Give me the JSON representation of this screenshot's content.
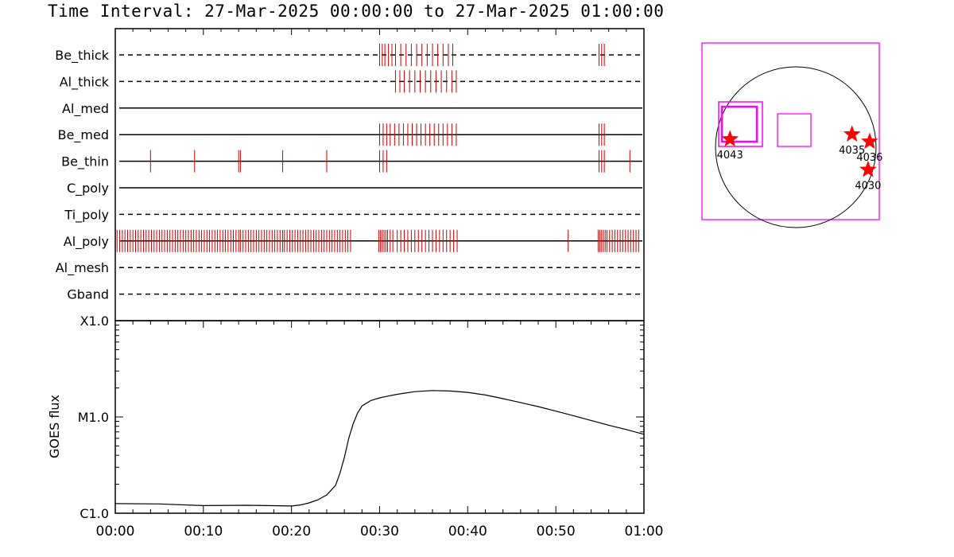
{
  "title": "Time Interval: 27-Mar-2025 00:00:00 to 27-Mar-2025 01:00:00",
  "colors": {
    "marks": "#cc0000",
    "fov": "#ff00ff",
    "star": "#ff0000",
    "line": "#000000"
  },
  "chart_data": [
    {
      "type": "timeline",
      "xlim": [
        "00:00",
        "01:00"
      ],
      "rows": [
        {
          "label": "Be_thick",
          "style": "dashed",
          "exposures": [
            30.0,
            30.3,
            30.6,
            31.0,
            31.4,
            31.8,
            32.4,
            33.0,
            33.6,
            34.2,
            34.8,
            35.4,
            36.0,
            36.6,
            37.2,
            37.8,
            38.3,
            54.9,
            55.2,
            55.5
          ]
        },
        {
          "label": "Al_thick",
          "style": "dashed",
          "exposures": [
            31.8,
            32.3,
            32.8,
            33.4,
            34.0,
            34.6,
            35.2,
            35.8,
            36.4,
            37.0,
            37.6,
            38.2,
            38.7
          ]
        },
        {
          "label": "Al_med",
          "style": "solid",
          "exposures": []
        },
        {
          "label": "Be_med",
          "style": "solid",
          "exposures": [
            30.0,
            30.4,
            30.8,
            31.2,
            31.7,
            32.2,
            32.7,
            33.2,
            33.7,
            34.2,
            34.7,
            35.2,
            35.7,
            36.2,
            36.7,
            37.2,
            37.7,
            38.2,
            38.7,
            54.9,
            55.2,
            55.5
          ]
        },
        {
          "label": "Be_thin",
          "style": "solid",
          "exposures": [
            4.0,
            9.0,
            14.0,
            14.2,
            19.0,
            24.0,
            30.0,
            30.4,
            30.8,
            54.9,
            55.2,
            55.5,
            58.4
          ]
        },
        {
          "label": "C_poly",
          "style": "solid",
          "exposures": []
        },
        {
          "label": "Ti_poly",
          "style": "dashed",
          "exposures": []
        },
        {
          "label": "Al_poly",
          "style": "solid",
          "exposures": [
            0.2,
            0.5,
            0.8,
            1.1,
            1.4,
            1.7,
            2.0,
            2.3,
            2.6,
            2.9,
            3.2,
            3.5,
            3.8,
            4.1,
            4.4,
            4.7,
            5.0,
            5.3,
            5.6,
            5.9,
            6.2,
            6.5,
            6.8,
            7.1,
            7.4,
            7.7,
            8.0,
            8.3,
            8.6,
            8.9,
            9.2,
            9.5,
            9.8,
            10.1,
            10.4,
            10.7,
            11.0,
            11.3,
            11.6,
            11.9,
            12.2,
            12.5,
            12.8,
            13.1,
            13.4,
            13.7,
            14.0,
            14.2,
            14.5,
            14.8,
            15.1,
            15.4,
            15.7,
            16.0,
            16.3,
            16.6,
            16.9,
            17.2,
            17.5,
            17.8,
            18.1,
            18.4,
            18.7,
            19.0,
            19.2,
            19.5,
            19.8,
            20.1,
            20.4,
            20.7,
            21.0,
            21.3,
            21.6,
            21.9,
            22.2,
            22.5,
            22.8,
            23.1,
            23.4,
            23.7,
            24.0,
            24.3,
            24.6,
            24.9,
            25.2,
            25.5,
            25.8,
            26.1,
            26.4,
            26.7,
            29.9,
            30.1,
            30.3,
            30.5,
            30.7,
            30.9,
            31.2,
            31.5,
            32.0,
            32.4,
            32.8,
            33.2,
            33.6,
            34.0,
            34.4,
            34.8,
            35.2,
            35.6,
            36.0,
            36.4,
            36.8,
            37.2,
            37.6,
            38.0,
            38.4,
            38.8,
            51.4,
            54.8,
            55.0,
            55.2,
            55.4,
            55.6,
            55.8,
            56.1,
            56.4,
            56.7,
            57.0,
            57.3,
            57.6,
            57.9,
            58.2,
            58.5,
            58.8,
            59.1,
            59.4
          ]
        },
        {
          "label": "Al_mesh",
          "style": "dashed",
          "exposures": []
        },
        {
          "label": "Gband",
          "style": "dashed",
          "exposures": []
        }
      ]
    },
    {
      "type": "line",
      "ylabel": "GOES flux",
      "yscale": "log",
      "ylim": [
        1e-06,
        0.0001
      ],
      "ytick_values": [
        1e-06,
        1e-05,
        0.0001
      ],
      "ytick_labels": [
        "C1.0",
        "M1.0",
        "X1.0"
      ],
      "xlim": [
        0,
        60
      ],
      "xtick_values": [
        0,
        10,
        20,
        30,
        40,
        50,
        60
      ],
      "xtick_labels": [
        "00:00",
        "00:10",
        "00:20",
        "00:30",
        "00:40",
        "00:50",
        "01:00"
      ],
      "series": [
        {
          "x": [
            0,
            5,
            10,
            15,
            20,
            21,
            22,
            23,
            24,
            25,
            25.5,
            26,
            26.5,
            27,
            27.5,
            28,
            29,
            30,
            31,
            32,
            34,
            36,
            38,
            40,
            42,
            44,
            46,
            48,
            50,
            52,
            54,
            56,
            58,
            60
          ],
          "y": [
            1.26e-06,
            1.25e-06,
            1.2e-06,
            1.21e-06,
            1.19e-06,
            1.22e-06,
            1.28e-06,
            1.38e-06,
            1.55e-06,
            1.95e-06,
            2.6e-06,
            3.8e-06,
            6e-06,
            8.5e-06,
            1.1e-05,
            1.3e-05,
            1.48e-05,
            1.58e-05,
            1.65e-05,
            1.72e-05,
            1.83e-05,
            1.88e-05,
            1.86e-05,
            1.8e-05,
            1.69e-05,
            1.55e-05,
            1.41e-05,
            1.28e-05,
            1.15e-05,
            1.03e-05,
            9.2e-06,
            8.2e-06,
            7.4e-06,
            6.6e-06
          ]
        }
      ]
    },
    {
      "type": "scatter",
      "description_free": true,
      "points": [
        {
          "label": "4043",
          "x": -820,
          "y": 100
        },
        {
          "label": "4035",
          "x": 700,
          "y": 160
        },
        {
          "label": "4036",
          "x": 920,
          "y": 70
        },
        {
          "label": "4030",
          "x": 900,
          "y": -280
        }
      ]
    }
  ]
}
